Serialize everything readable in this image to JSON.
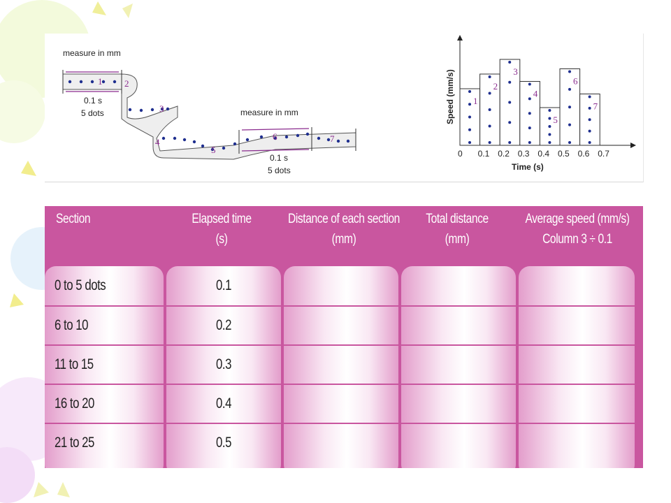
{
  "figure": {
    "tape": {
      "measure_label_1": "measure in mm",
      "measure_label_2": "measure in mm",
      "interval_time_1": "0.1 s",
      "interval_dots_1": "5 dots",
      "interval_time_2": "0.1 s",
      "interval_dots_2": "5 dots",
      "section_numbers": [
        "1",
        "2",
        "3",
        "4",
        "5",
        "6",
        "7"
      ]
    },
    "chart_data": {
      "type": "bar",
      "xlabel": "Time (s)",
      "ylabel": "Speed (mm/s)",
      "x_ticks": [
        "0",
        "0.1",
        "0.2",
        "0.3",
        "0.4",
        "0.5",
        "0.6",
        "0.7"
      ],
      "categories": [
        "1",
        "2",
        "3",
        "4",
        "5",
        "6",
        "7"
      ],
      "values": [
        5.4,
        6.8,
        8.2,
        6.1,
        3.6,
        7.3,
        4.9
      ],
      "ylim": [
        0,
        10
      ],
      "dots_per_bar": 5,
      "grid": false
    }
  },
  "table": {
    "headers": [
      [
        "Section"
      ],
      [
        "Elapsed time",
        "(s)"
      ],
      [
        "Distance of each section",
        "(mm)"
      ],
      [
        "Total distance",
        "(mm)"
      ],
      [
        "Average speed (mm/s)",
        "Column 3 ÷ 0.1"
      ]
    ],
    "rows": [
      [
        "0 to 5 dots",
        "0.1",
        "",
        "",
        ""
      ],
      [
        "6 to 10",
        "0.2",
        "",
        "",
        ""
      ],
      [
        "11 to 15",
        "0.3",
        "",
        "",
        ""
      ],
      [
        "16 to 20",
        "0.4",
        "",
        "",
        ""
      ],
      [
        "21 to 25",
        "0.5",
        "",
        "",
        ""
      ]
    ],
    "colors": {
      "background": "#c9569f",
      "header_text": "#ffffff",
      "accent": "#8a2b8e"
    }
  }
}
